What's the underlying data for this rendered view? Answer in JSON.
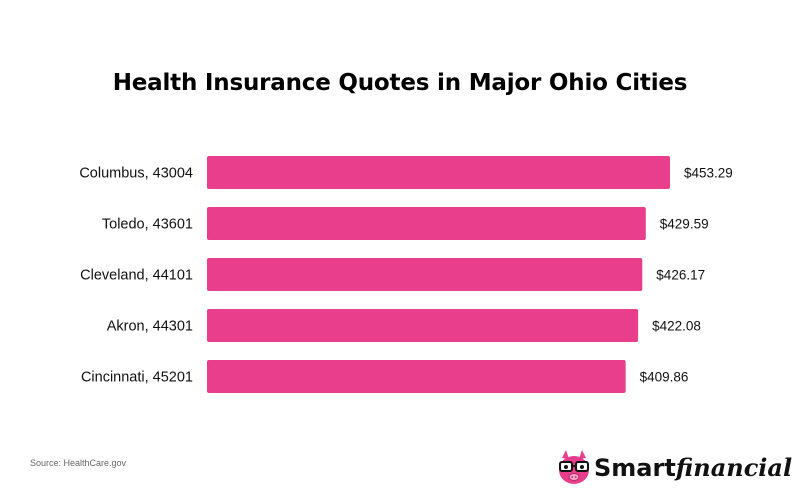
{
  "colors": {
    "bar": "#e83e8c",
    "text": "#111111",
    "brand_pink": "#e83e8c"
  },
  "chart_data": {
    "type": "bar",
    "orientation": "horizontal",
    "title": "Health Insurance Quotes in Major Ohio Cities",
    "categories": [
      "Columbus, 43004",
      "Toledo, 43601",
      "Cleveland, 44101",
      "Akron, 44301",
      "Cincinnati, 45201"
    ],
    "values": [
      453.29,
      429.59,
      426.17,
      422.08,
      409.86
    ],
    "value_labels": [
      "$453.29",
      "$429.59",
      "$426.17",
      "$422.08",
      "$409.86"
    ],
    "xlim": [
      0,
      453.29
    ],
    "grid": false,
    "legend": "none"
  },
  "footer": {
    "source": "Source: HealthCare.gov"
  },
  "brand": {
    "name_part1": "Smart",
    "name_part2": "financial",
    "mascot_icon": "pig-with-glasses-icon"
  }
}
